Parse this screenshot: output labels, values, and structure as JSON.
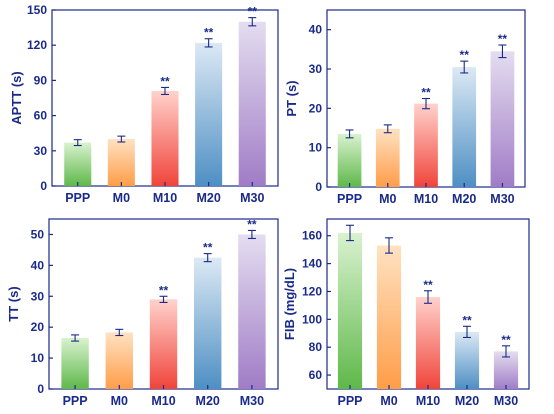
{
  "chart_data": [
    {
      "type": "bar",
      "ylabel": "APTT (s)",
      "ylim": [
        0,
        150
      ],
      "yticks": [
        0,
        30,
        60,
        90,
        120,
        150
      ],
      "categories": [
        "PPP",
        "M0",
        "M10",
        "M20",
        "M30"
      ],
      "values": [
        37,
        40,
        81,
        122,
        140
      ],
      "errors": [
        2.5,
        2.5,
        3,
        3.5,
        3.5
      ],
      "significance": [
        "",
        "",
        "**",
        "**",
        "**"
      ]
    },
    {
      "type": "bar",
      "ylabel": "PT (s)",
      "ylim": [
        0,
        45
      ],
      "yticks": [
        0,
        10,
        20,
        30,
        40
      ],
      "categories": [
        "PPP",
        "M0",
        "M10",
        "M20",
        "M30"
      ],
      "values": [
        13.5,
        14.8,
        21.2,
        30.5,
        34.5
      ],
      "errors": [
        1,
        1,
        1.3,
        1.5,
        1.6
      ],
      "significance": [
        "",
        "",
        "**",
        "**",
        "**"
      ]
    },
    {
      "type": "bar",
      "ylabel": "TT (s)",
      "ylim": [
        0,
        55
      ],
      "yticks": [
        0,
        10,
        20,
        30,
        40,
        50
      ],
      "categories": [
        "PPP",
        "M0",
        "M10",
        "M20",
        "M30"
      ],
      "values": [
        16.5,
        18.3,
        29,
        42.5,
        50
      ],
      "errors": [
        1,
        1,
        1,
        1.3,
        1.3
      ],
      "significance": [
        "",
        "",
        "**",
        "**",
        "**"
      ]
    },
    {
      "type": "bar",
      "ylabel": "FIB (mg/dL)",
      "ylim": [
        50,
        172
      ],
      "yticks": [
        60,
        80,
        100,
        120,
        140,
        160
      ],
      "categories": [
        "PPP",
        "M0",
        "M10",
        "M20",
        "M30"
      ],
      "values": [
        162,
        153,
        116,
        91,
        77
      ],
      "errors": [
        5.5,
        5.5,
        4.5,
        4,
        4
      ],
      "significance": [
        "",
        "",
        "**",
        "**",
        "**"
      ]
    }
  ],
  "bar_gradients": [
    {
      "light": "#d9f2cf",
      "dark": "#5fb84a"
    },
    {
      "light": "#ffe2c2",
      "dark": "#ff9d48"
    },
    {
      "light": "#ffd2cc",
      "dark": "#f0443a"
    },
    {
      "light": "#dce9f4",
      "dark": "#4e8fc4"
    },
    {
      "light": "#e4ddf0",
      "dark": "#a07cc6"
    }
  ],
  "axis_color": "#1a2a8a",
  "error_color": "#1a2a8a"
}
